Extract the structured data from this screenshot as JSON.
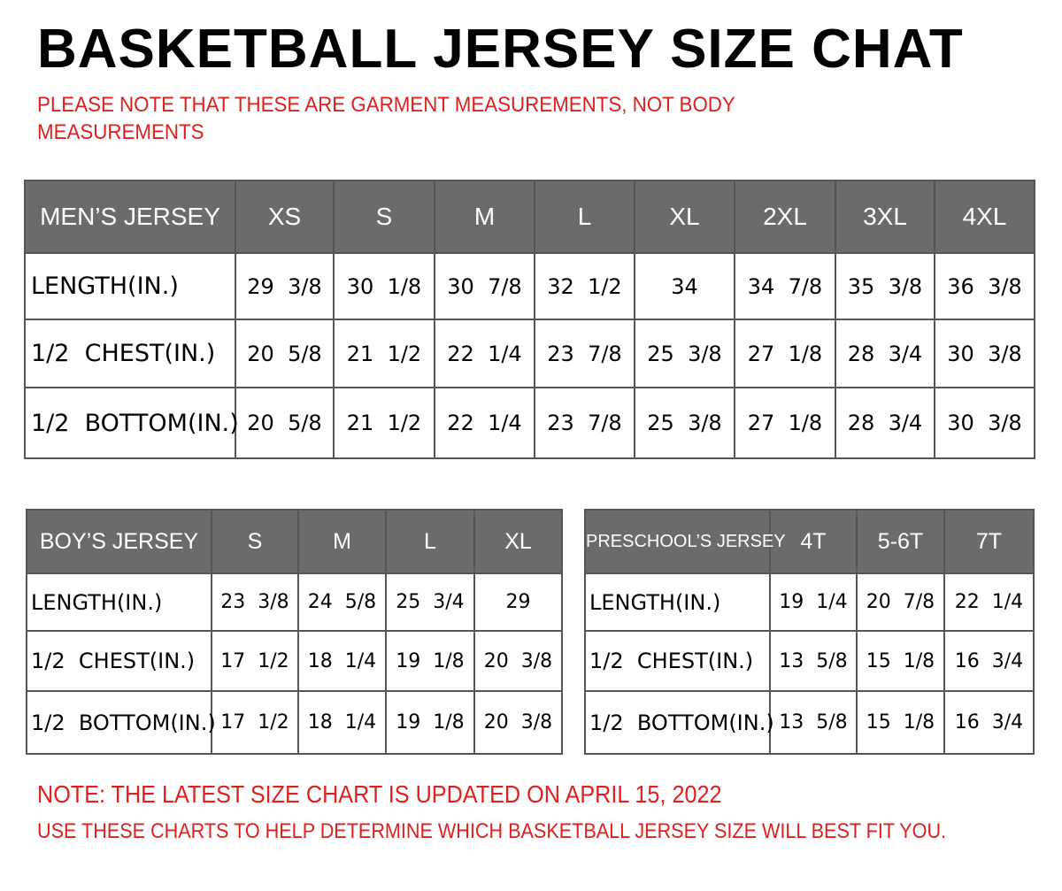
{
  "title": "BASKETBALL JERSEY SIZE CHAT",
  "note": "PLEASE NOTE THAT THESE ARE GARMENT MEASUREMENTS, NOT BODY MEASUREMENTS",
  "colors": {
    "header_bg": "#6b6b6b",
    "note_red": "#e0201e"
  },
  "mens": {
    "header": [
      "MEN’S JERSEY",
      "XS",
      "S",
      "M",
      "L",
      "XL",
      "2XL",
      "3XL",
      "4XL"
    ],
    "rows": [
      [
        "LENGTH(IN.)",
        "29  3/8",
        "30  1/8",
        "30  7/8",
        "32  1/2",
        "34",
        "34  7/8",
        "35  3/8",
        "36  3/8"
      ],
      [
        "1/2  CHEST(IN.)",
        "20  5/8",
        "21  1/2",
        "22  1/4",
        "23  7/8",
        "25  3/8",
        "27  1/8",
        "28  3/4",
        "30  3/8"
      ],
      [
        "1/2  BOTTOM(IN.)",
        "20  5/8",
        "21  1/2",
        "22  1/4",
        "23  7/8",
        "25  3/8",
        "27  1/8",
        "28  3/4",
        "30  3/8"
      ]
    ]
  },
  "boys": {
    "header": [
      "BOY’S JERSEY",
      "S",
      "M",
      "L",
      "XL"
    ],
    "rows": [
      [
        "LENGTH(IN.)",
        "23  3/8",
        "24  5/8",
        "25  3/4",
        "29"
      ],
      [
        "1/2  CHEST(IN.)",
        "17  1/2",
        "18  1/4",
        "19  1/8",
        "20  3/8"
      ],
      [
        "1/2  BOTTOM(IN.)",
        "17  1/2",
        "18  1/4",
        "19  1/8",
        "20  3/8"
      ]
    ]
  },
  "preschool": {
    "header": [
      "PRESCHOOL’S JERSEY",
      "4T",
      "5-6T",
      "7T"
    ],
    "rows": [
      [
        "LENGTH(IN.)",
        "19  1/4",
        "20  7/8",
        "22  1/4"
      ],
      [
        "1/2  CHEST(IN.)",
        "13  5/8",
        "15  1/8",
        "16  3/4"
      ],
      [
        "1/2  BOTTOM(IN.)",
        "13  5/8",
        "15  1/8",
        "16  3/4"
      ]
    ]
  },
  "footer": {
    "line1": "NOTE: THE LATEST SIZE CHART IS UPDATED ON APRIL 15, 2022",
    "line2": "USE THESE CHARTS TO HELP DETERMINE WHICH  BASKETBALL JERSEY  SIZE WILL BEST FIT YOU."
  }
}
